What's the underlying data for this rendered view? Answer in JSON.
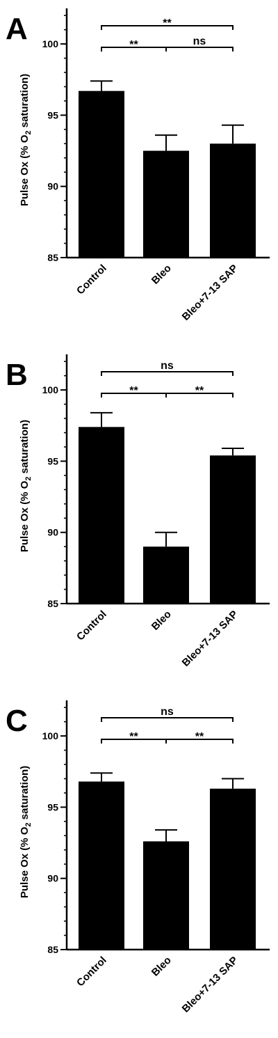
{
  "chart_data": [
    {
      "type": "bar",
      "panel": "A",
      "categories": [
        "Control",
        "Bleo",
        "Bleo+7-13 SAP"
      ],
      "values": [
        96.7,
        92.5,
        93.0
      ],
      "errors": [
        0.7,
        1.1,
        1.3
      ],
      "ylabel_parts": [
        "Pulse Ox (% O",
        "2",
        " saturation)"
      ],
      "ylim": [
        85,
        102.5
      ],
      "yticks": [
        "85",
        "90",
        "95",
        "100"
      ],
      "significance": [
        {
          "from": 0,
          "to": 1,
          "label": "**"
        },
        {
          "from": 1,
          "to": 2,
          "label": "ns"
        },
        {
          "from": 0,
          "to": 2,
          "label": "**"
        }
      ]
    },
    {
      "type": "bar",
      "panel": "B",
      "categories": [
        "Control",
        "Bleo",
        "Bleo+7-13 SAP"
      ],
      "values": [
        97.4,
        89.0,
        95.4
      ],
      "errors": [
        1.0,
        1.0,
        0.5
      ],
      "ylabel_parts": [
        "Pulse Ox (% O",
        "2",
        " saturation)"
      ],
      "ylim": [
        85,
        102.5
      ],
      "yticks": [
        "85",
        "90",
        "95",
        "100"
      ],
      "significance": [
        {
          "from": 0,
          "to": 1,
          "label": "**"
        },
        {
          "from": 1,
          "to": 2,
          "label": "**"
        },
        {
          "from": 0,
          "to": 2,
          "label": "ns"
        }
      ]
    },
    {
      "type": "bar",
      "panel": "C",
      "categories": [
        "Control",
        "Bleo",
        "Bleo+7-13 SAP"
      ],
      "values": [
        96.8,
        92.6,
        96.3
      ],
      "errors": [
        0.6,
        0.8,
        0.7
      ],
      "ylabel_parts": [
        "Pulse Ox (% O",
        "2",
        " saturation)"
      ],
      "ylim": [
        85,
        102.5
      ],
      "yticks": [
        "85",
        "90",
        "95",
        "100"
      ],
      "significance": [
        {
          "from": 0,
          "to": 1,
          "label": "**"
        },
        {
          "from": 1,
          "to": 2,
          "label": "**"
        },
        {
          "from": 0,
          "to": 2,
          "label": "ns"
        }
      ]
    }
  ]
}
